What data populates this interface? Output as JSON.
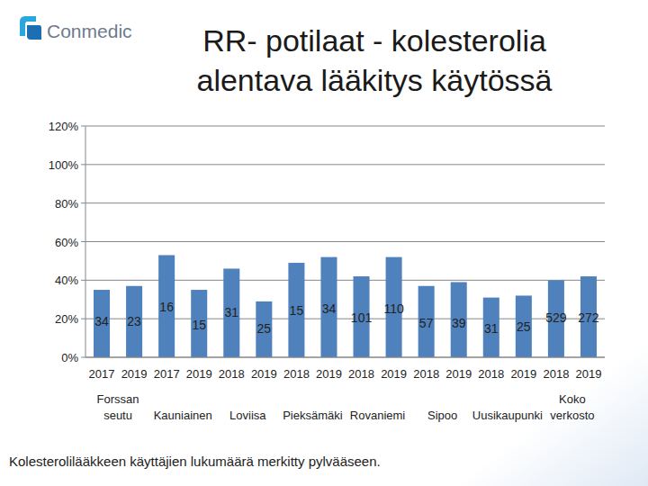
{
  "header": {
    "logo": "Conmedic"
  },
  "chart_data": {
    "type": "bar",
    "title": "RR- potilaat - kolesterolia alentava lääkitys käytössä",
    "categories": [
      "2017",
      "2019",
      "2017",
      "2019",
      "2018",
      "2019",
      "2018",
      "2019",
      "2018",
      "2019",
      "2018",
      "2019",
      "2018",
      "2019",
      "2018",
      "2019"
    ],
    "groups": [
      "Forssan seutu",
      "Kauniainen",
      "Loviisa",
      "Pieksämäki",
      "Rovaniemi",
      "Sipoo",
      "Uusikaupunki",
      "Koko verkosto"
    ],
    "values": [
      35,
      37,
      53,
      35,
      46,
      29,
      49,
      52,
      42,
      52,
      37,
      39,
      31,
      32,
      40,
      42
    ],
    "bar_counts": [
      34,
      23,
      16,
      15,
      31,
      25,
      15,
      34,
      101,
      110,
      57,
      39,
      31,
      25,
      529,
      272
    ],
    "color": "#4f81bd",
    "ylim": [
      0,
      120
    ],
    "yticks": [
      {
        "value": 0,
        "label": "0%"
      },
      {
        "value": 20,
        "label": "20%"
      },
      {
        "value": 40,
        "label": "40%"
      },
      {
        "value": 60,
        "label": "60%"
      },
      {
        "value": 80,
        "label": "80%"
      },
      {
        "value": 100,
        "label": "100%"
      },
      {
        "value": 120,
        "label": "120%"
      }
    ],
    "grid": true,
    "footnote": "Kolesterolilääkkeen käyttäjien lukumäärä merkitty pylvääseen."
  }
}
